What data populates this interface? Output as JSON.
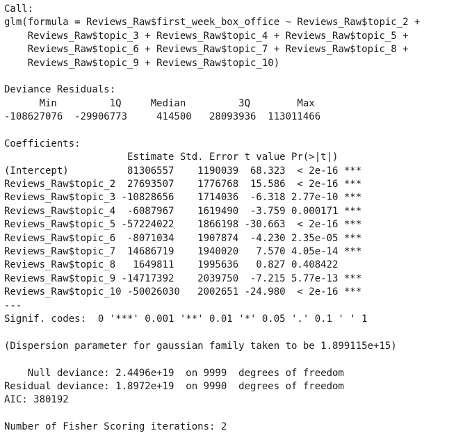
{
  "output": {
    "call_header": "Call:",
    "call_lines": [
      "glm(formula = Reviews_Raw$first_week_box_office ~ Reviews_Raw$topic_2 +",
      "    Reviews_Raw$topic_3 + Reviews_Raw$topic_4 + Reviews_Raw$topic_5 +",
      "    Reviews_Raw$topic_6 + Reviews_Raw$topic_7 + Reviews_Raw$topic_8 +",
      "    Reviews_Raw$topic_9 + Reviews_Raw$topic_10)"
    ],
    "deviance_header": "Deviance Residuals:",
    "deviance_table": [
      "      Min         1Q     Median         3Q        Max",
      "-108627076  -29906773     414500   28093936  113011466"
    ],
    "coef_header": "Coefficients:",
    "coef_table": [
      "                     Estimate Std. Error t value Pr(>|t|)    ",
      "(Intercept)          81306557    1190039  68.323  < 2e-16 ***",
      "Reviews_Raw$topic_2  27693507    1776768  15.586  < 2e-16 ***",
      "Reviews_Raw$topic_3 -10828656    1714036  -6.318 2.77e-10 ***",
      "Reviews_Raw$topic_4  -6087967    1619490  -3.759 0.000171 ***",
      "Reviews_Raw$topic_5 -57224022    1866198 -30.663  < 2e-16 ***",
      "Reviews_Raw$topic_6  -8071034    1907874  -4.230 2.35e-05 ***",
      "Reviews_Raw$topic_7  14686719    1940020   7.570 4.05e-14 ***",
      "Reviews_Raw$topic_8   1649811    1995636   0.827 0.408422    ",
      "Reviews_Raw$topic_9 -14717392    2039750  -7.215 5.77e-13 ***",
      "Reviews_Raw$topic_10 -50026030   2002651 -24.980  < 2e-16 ***"
    ],
    "separator": "---",
    "signif_codes": "Signif. codes:  0 '***' 0.001 '**' 0.01 '*' 0.05 '.' 0.1 ' ' 1",
    "dispersion": "(Dispersion parameter for gaussian family taken to be 1.899115e+15)",
    "null_deviance": "    Null deviance: 2.4496e+19  on 9999  degrees of freedom",
    "residual_deviance": "Residual deviance: 1.8972e+19  on 9990  degrees of freedom",
    "aic": "AIC: 380192",
    "fisher_iterations": "Number of Fisher Scoring iterations: 2"
  }
}
